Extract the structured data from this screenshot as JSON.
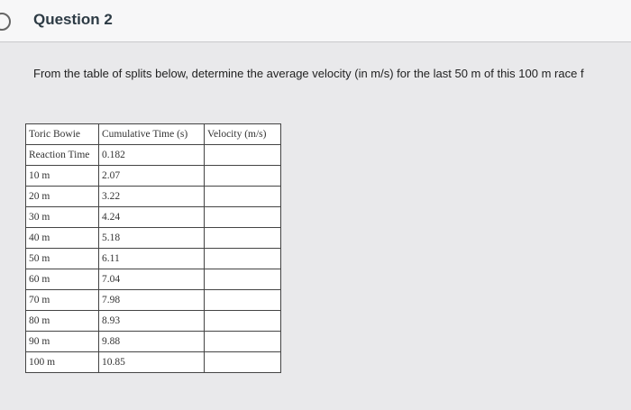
{
  "header": {
    "title": "Question 2"
  },
  "question": {
    "text": "From the table of splits below, determine the average velocity (in m/s) for the last 50 m of this 100 m race f"
  },
  "table": {
    "header": [
      "Toric Bowie",
      "Cumulative Time (s)",
      "Velocity (m/s)"
    ],
    "rows": [
      [
        "Reaction Time",
        "0.182"
      ],
      [
        "10 m",
        "2.07"
      ],
      [
        "20 m",
        "3.22"
      ],
      [
        "30 m",
        "4.24"
      ],
      [
        "40 m",
        "5.18"
      ],
      [
        "50 m",
        "6.11"
      ],
      [
        "60 m",
        "7.04"
      ],
      [
        "70 m",
        "7.98"
      ],
      [
        "80 m",
        "8.93"
      ],
      [
        "90 m",
        "9.88"
      ],
      [
        "100 m",
        "10.85"
      ]
    ]
  }
}
